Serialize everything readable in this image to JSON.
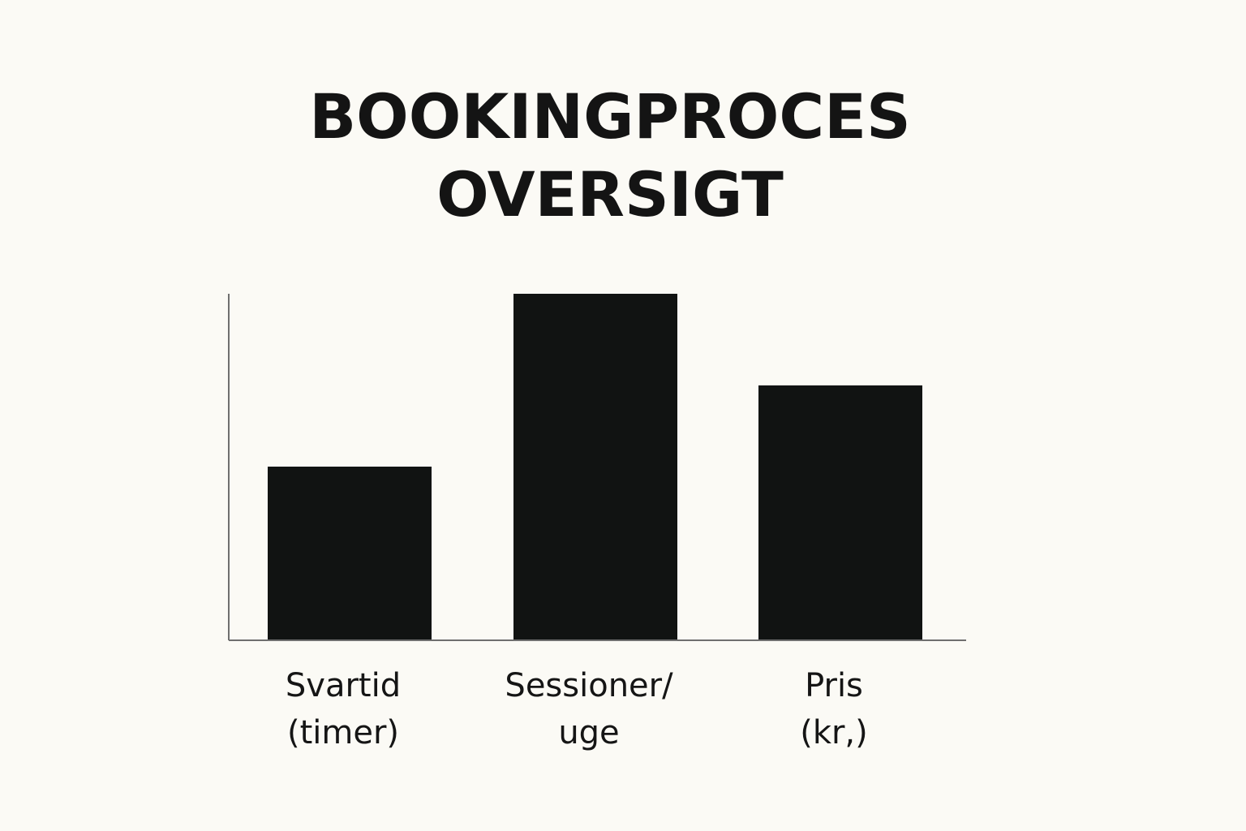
{
  "chart_data": {
    "type": "bar",
    "title_lines": [
      "BOOKINGPROCES",
      "OVERSIGT"
    ],
    "categories": [
      [
        "Svartid",
        "(timer)"
      ],
      [
        "Sessioner/",
        "uge"
      ],
      [
        "Pris",
        "(kr,)"
      ]
    ],
    "values": [
      50,
      100,
      73.5
    ],
    "ylim": [
      0,
      100
    ],
    "xlabel": "",
    "ylabel": "",
    "grid": false,
    "legend": "none",
    "colors": {
      "bar": "#111312",
      "axis": "#6f6f6f",
      "background": "#fbfaf5",
      "text": "#141414"
    }
  }
}
